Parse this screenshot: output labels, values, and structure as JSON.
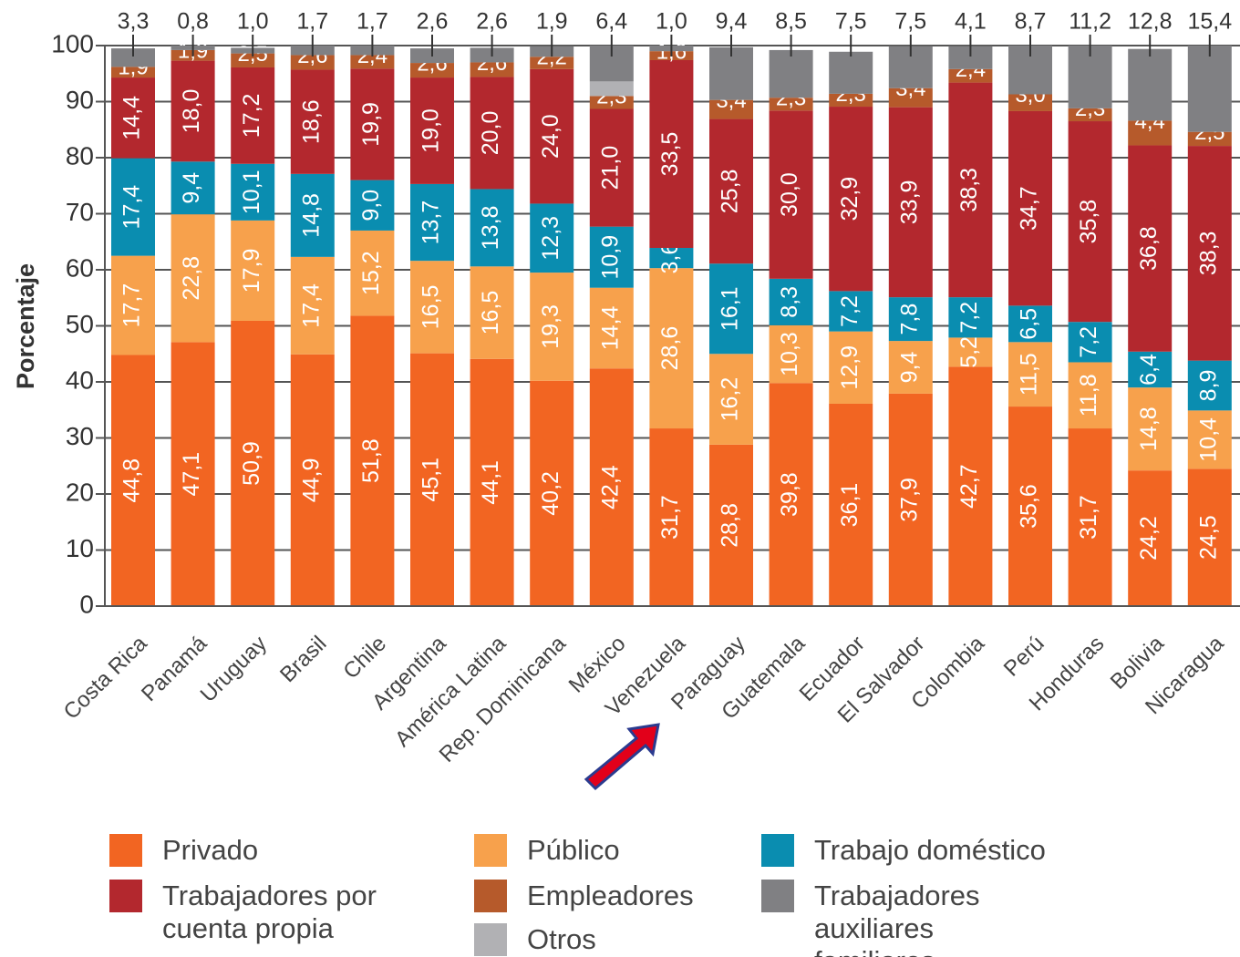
{
  "chart_data": {
    "type": "stacked_bar",
    "y_label": "Porcentaje",
    "categories": [
      "Costa Rica",
      "Panamá",
      "Uruguay",
      "Brasil",
      "Chile",
      "Argentina",
      "América Latina",
      "Rep. Dominicana",
      "México",
      "Venezuela",
      "Paraguay",
      "Guatemala",
      "Ecuador",
      "El Salvador",
      "Colombia",
      "Perú",
      "Honduras",
      "Bolivia",
      "Nicaragua"
    ],
    "ylim": [
      0,
      100
    ],
    "yticks": [
      0,
      10,
      20,
      30,
      40,
      50,
      60,
      70,
      80,
      90,
      100
    ],
    "series": [
      {
        "name": "Privado",
        "color": "#f26522",
        "values": [
          44.8,
          47.1,
          50.9,
          44.9,
          51.8,
          45.1,
          44.1,
          40.2,
          42.4,
          31.7,
          28.8,
          39.8,
          36.1,
          37.9,
          42.7,
          35.6,
          31.7,
          24.2,
          24.5
        ],
        "value_labels": [
          "44,8",
          "47,1",
          "50,9",
          "44,9",
          "51,8",
          "45,1",
          "44,1",
          "40,2",
          "42,4",
          "31,7",
          "28,8",
          "39,8",
          "36,1",
          "37,9",
          "42,7",
          "35,6",
          "31,7",
          "24,2",
          "24,5"
        ]
      },
      {
        "name": "Público",
        "color": "#f7a14c",
        "values": [
          17.7,
          22.8,
          17.9,
          17.4,
          15.2,
          16.5,
          16.5,
          19.3,
          14.4,
          28.6,
          16.2,
          10.3,
          12.9,
          9.4,
          5.2,
          11.5,
          11.8,
          14.8,
          10.4
        ],
        "value_labels": [
          "17,7",
          "22,8",
          "17,9",
          "17,4",
          "15,2",
          "16,5",
          "16,5",
          "19,3",
          "14,4",
          "28,6",
          "16,2",
          "10,3",
          "12,9",
          "9,4",
          "5,2",
          "11,5",
          "11,8",
          "14,8",
          "10,4"
        ]
      },
      {
        "name": "Trabajo doméstico",
        "color": "#0a8db0",
        "values": [
          17.4,
          9.4,
          10.1,
          14.8,
          9.0,
          13.7,
          13.8,
          12.3,
          10.9,
          3.6,
          16.1,
          8.3,
          7.2,
          7.8,
          7.2,
          6.5,
          7.2,
          6.4,
          8.9
        ],
        "value_labels": [
          "17,4",
          "9,4",
          "10,1",
          "14,8",
          "9,0",
          "13,7",
          "13,8",
          "12,3",
          "10,9",
          "3,6",
          "16,1",
          "8,3",
          "7,2",
          "7,8",
          "7,2",
          "6,5",
          "7,2",
          "6,4",
          "8,9"
        ]
      },
      {
        "name": "Trabajadores por cuenta propia",
        "color": "#b3282e",
        "values": [
          14.4,
          18.0,
          17.2,
          18.6,
          19.9,
          19.0,
          20.0,
          24.0,
          21.0,
          33.5,
          25.8,
          30.0,
          32.9,
          33.9,
          38.3,
          34.7,
          35.8,
          36.8,
          38.3
        ],
        "value_labels": [
          "14,4",
          "18,0",
          "17,2",
          "18,6",
          "19,9",
          "19,0",
          "20,0",
          "24,0",
          "21,0",
          "33,5",
          "25,8",
          "30,0",
          "32,9",
          "33,9",
          "38,3",
          "34,7",
          "35,8",
          "36,8",
          "38,3"
        ]
      },
      {
        "name": "Empleadores",
        "color": "#b65a2b",
        "values": [
          1.9,
          1.9,
          2.5,
          2.6,
          2.4,
          2.6,
          2.6,
          2.2,
          2.3,
          1.6,
          3.4,
          2.3,
          2.3,
          3.4,
          2.4,
          3.0,
          2.3,
          4.4,
          2.5
        ],
        "value_labels": [
          "1,9",
          "1,9",
          "2,5",
          "2,6",
          "2,4",
          "2,6",
          "2,6",
          "2,2",
          "2,3",
          "1,6",
          "3,4",
          "2,3",
          "2,3",
          "3,4",
          "2,4",
          "3,0",
          "2,3",
          "4,4",
          "2,5"
        ]
      },
      {
        "name": "Otros",
        "color": "#b1b1b4",
        "values": [
          null,
          null,
          null,
          null,
          null,
          null,
          null,
          null,
          2.6,
          null,
          null,
          null,
          null,
          null,
          null,
          null,
          null,
          null,
          null
        ]
      },
      {
        "name": "Trabajadores auxiliares familiares",
        "color": "#808083",
        "values": [
          3.3,
          0.8,
          1.0,
          1.7,
          1.7,
          2.6,
          2.6,
          1.9,
          6.4,
          1.0,
          9.4,
          8.5,
          7.5,
          7.5,
          4.1,
          8.7,
          11.2,
          12.8,
          15.4
        ],
        "value_labels": [
          "3,3",
          "0,8",
          "1,0",
          "1,7",
          "1,7",
          "2,6",
          "2,6",
          "1,9",
          "6,4",
          "1,0",
          "9,4",
          "8,5",
          "7,5",
          "7,5",
          "4,1",
          "8,7",
          "11,2",
          "12,8",
          "15,4"
        ]
      }
    ]
  }
}
